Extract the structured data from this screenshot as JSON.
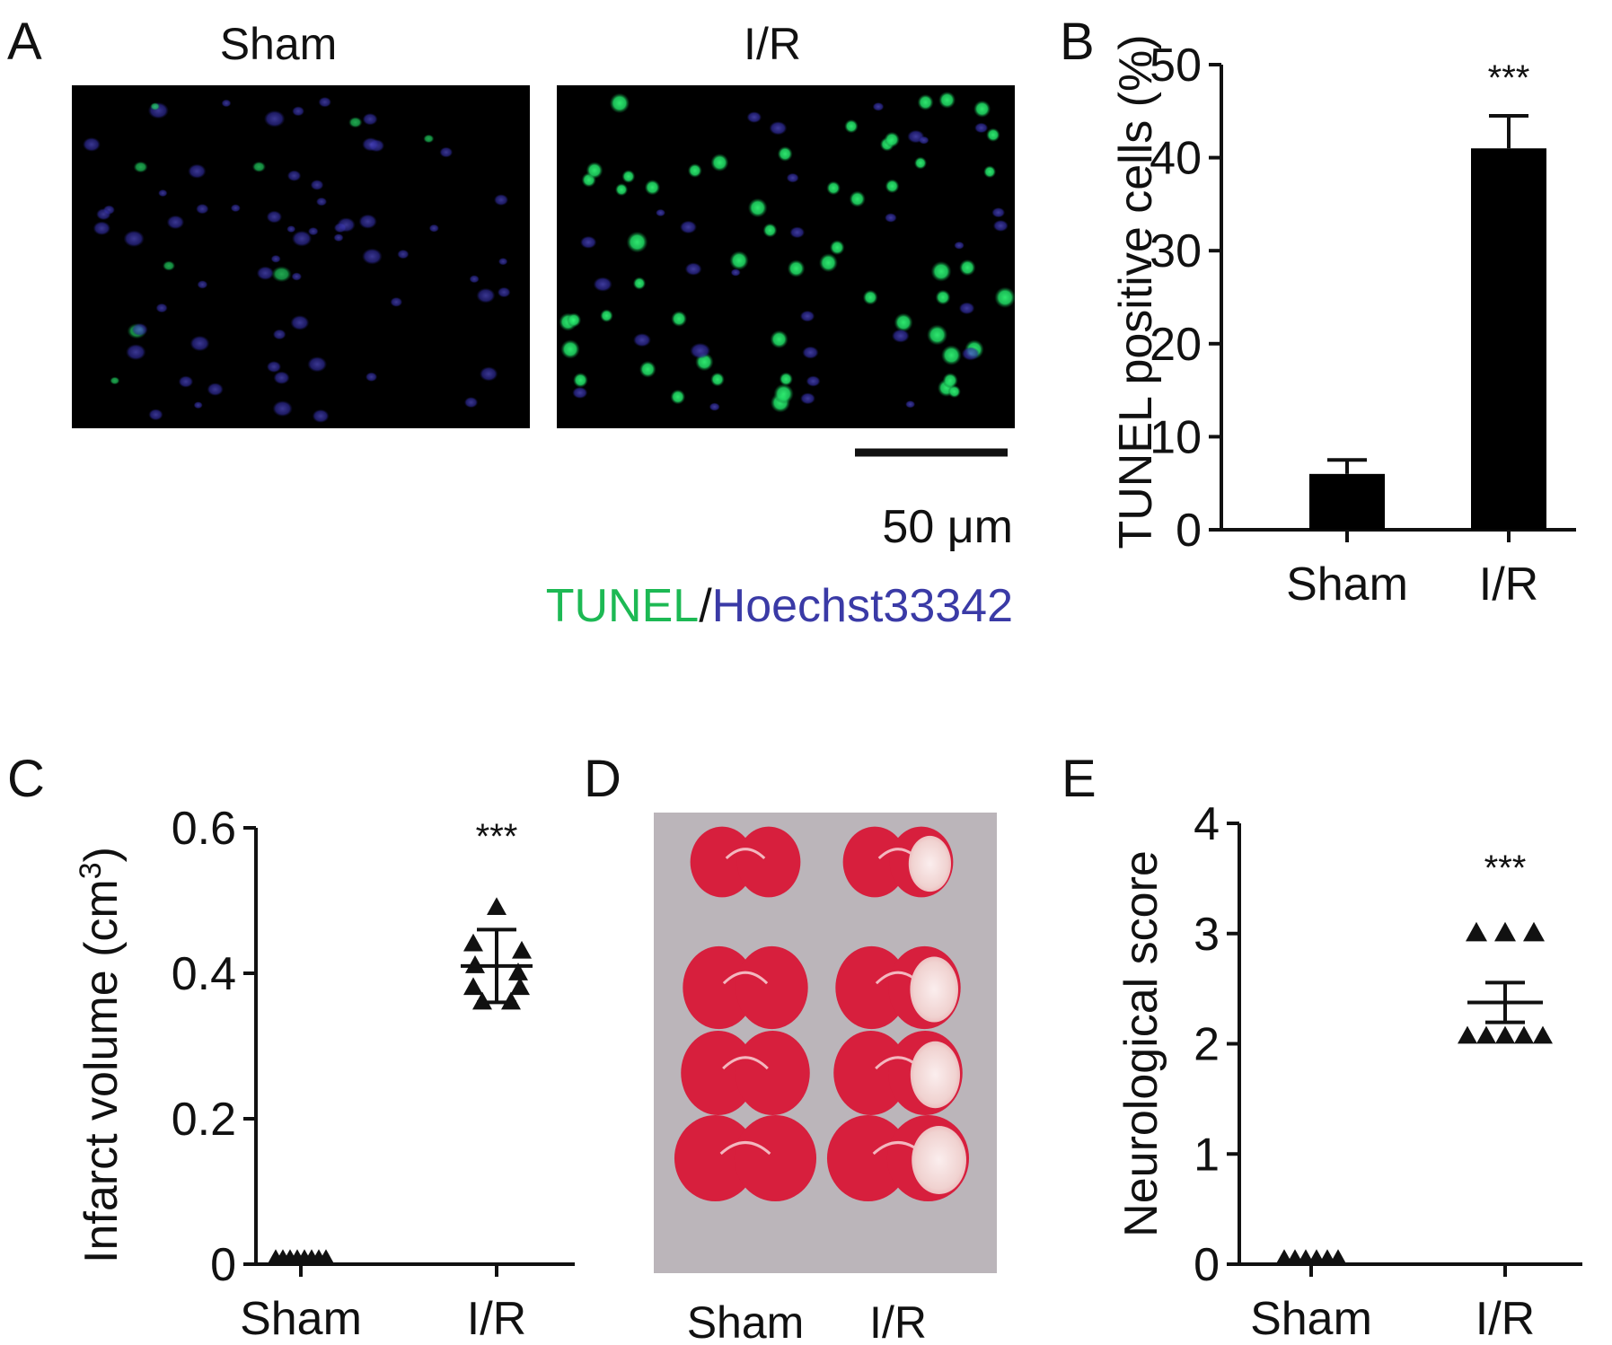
{
  "panels": {
    "A": {
      "letter": "A",
      "col_labels": [
        "Sham",
        "I/R"
      ],
      "scale_bar_label": "50 μm",
      "stain_green": "TUNEL",
      "stain_sep": "/",
      "stain_blue": "Hoechst33342",
      "colors": {
        "green": "#1db954",
        "blue": "#3a3aa6",
        "background": "#000000"
      }
    },
    "B": {
      "letter": "B"
    },
    "C": {
      "letter": "C"
    },
    "D": {
      "letter": "D",
      "col_labels": [
        "Sham",
        "I/R"
      ],
      "colors": {
        "tissue": "#d6203c",
        "infarct": "#f1d8d6",
        "tray": "#b9b4b8"
      }
    },
    "E": {
      "letter": "E"
    }
  },
  "chart_data": [
    {
      "panel": "B",
      "type": "bar",
      "categories": [
        "Sham",
        "I/R"
      ],
      "values": [
        6,
        41
      ],
      "errors": [
        1.5,
        3.5
      ],
      "ylabel": "TUNEL positive cells (%)",
      "ylim": [
        0,
        50
      ],
      "yticks": [
        0,
        10,
        20,
        30,
        40,
        50
      ],
      "annotations": [
        {
          "category": "I/R",
          "text": "***"
        }
      ],
      "bar_color": "#000000"
    },
    {
      "panel": "C",
      "type": "scatter",
      "categories": [
        "Sham",
        "I/R"
      ],
      "points": {
        "Sham": [
          0,
          0,
          0,
          0,
          0,
          0,
          0,
          0
        ],
        "I/R": [
          0.49,
          0.44,
          0.43,
          0.41,
          0.4,
          0.38,
          0.38,
          0.36,
          0.36
        ]
      },
      "mean": [
        0,
        0.41
      ],
      "sd": [
        0,
        0.05
      ],
      "ylabel": "Infarct volume (cm",
      "ylabel_sup": "3",
      "ylabel_end": ")",
      "ylim": [
        0,
        0.6
      ],
      "yticks": [
        "0",
        "0.2",
        "0.4",
        "0.6"
      ],
      "ytick_values": [
        0,
        0.2,
        0.4,
        0.6
      ],
      "annotations": [
        {
          "category": "I/R",
          "text": "***"
        }
      ],
      "marker": "triangle-up"
    },
    {
      "panel": "E",
      "type": "scatter",
      "categories": [
        "Sham",
        "I/R"
      ],
      "points": {
        "Sham": [
          0,
          0,
          0,
          0,
          0,
          0
        ],
        "I/R": [
          3,
          3,
          3,
          2,
          2,
          2,
          2,
          2
        ]
      },
      "mean": [
        0,
        2.375
      ],
      "sem": [
        0,
        0.18
      ],
      "ylabel": "Neurological score",
      "ylim": [
        0,
        4
      ],
      "yticks": [
        0,
        1,
        2,
        3,
        4
      ],
      "annotations": [
        {
          "category": "I/R",
          "text": "***"
        }
      ],
      "marker": "triangle-up"
    }
  ]
}
